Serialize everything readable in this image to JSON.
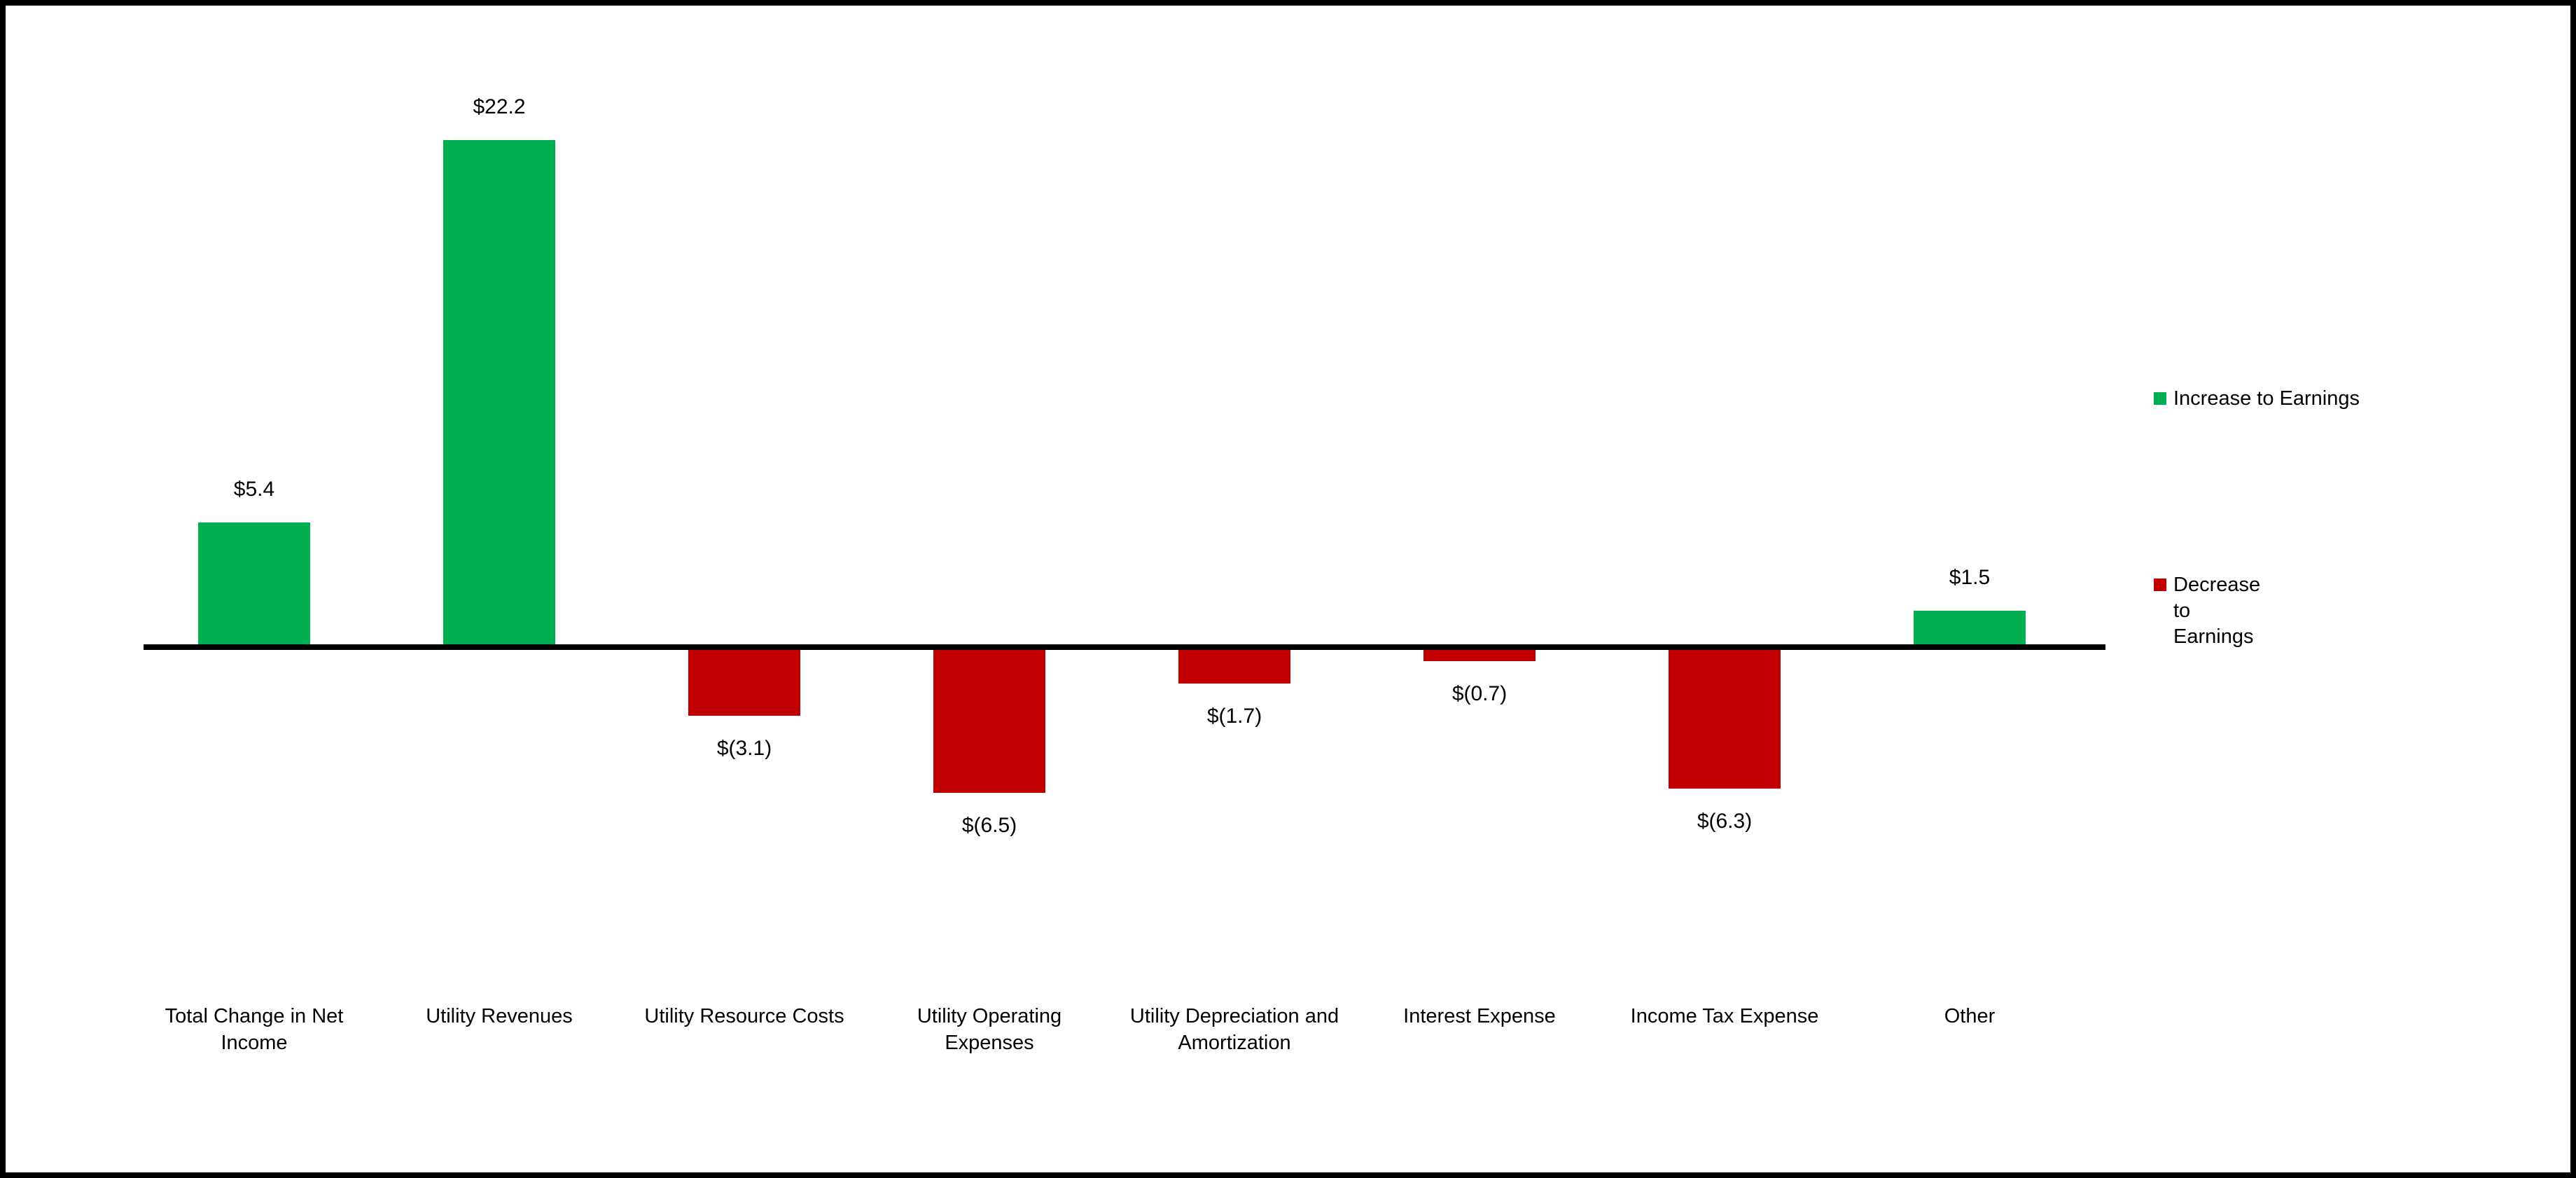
{
  "chart_data": {
    "type": "bar",
    "title": "",
    "xlabel": "",
    "ylabel": "",
    "categories": [
      "Total Change in Net Income",
      "Utility Revenues",
      "Utility Resource Costs",
      "Utility Operating Expenses",
      "Utility Depreciation and Amortization",
      "Interest Expense",
      "Income Tax Expense",
      "Other"
    ],
    "values": [
      5.4,
      22.2,
      -3.1,
      -6.5,
      -1.7,
      -0.7,
      -6.3,
      1.5
    ],
    "value_labels": [
      "$5.4",
      "$22.2",
      "$(3.1)",
      "$(6.5)",
      "$(1.7)",
      "$(0.7)",
      "$(6.3)",
      "$1.5"
    ],
    "ylim": [
      -8,
      24
    ],
    "grid": false,
    "baseline": 0,
    "legend_position": "right",
    "colors": {
      "increase": "#00B050",
      "decrease": "#C00000",
      "axis": "#000000",
      "text": "#000000",
      "background": "#FFFFFF"
    },
    "legend": [
      {
        "label": "Increase to Earnings",
        "color": "#00B050"
      },
      {
        "label": "Decrease to Earnings",
        "color": "#C00000"
      }
    ]
  }
}
